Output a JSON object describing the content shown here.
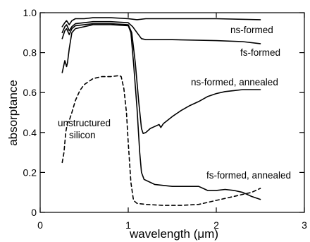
{
  "chart_data": {
    "type": "line",
    "title": "",
    "xlabel": "wavelength (μm)",
    "ylabel": "absorptance",
    "xlim": [
      0,
      3
    ],
    "ylim": [
      0,
      1.0
    ],
    "x_ticks": [
      0,
      1,
      2,
      3
    ],
    "y_ticks": [
      0,
      0.2,
      0.4,
      0.6,
      0.8,
      1.0
    ],
    "x_tick_labels": [
      "0",
      "1",
      "2",
      "3"
    ],
    "y_tick_labels": [
      "0",
      "0.2",
      "0.4",
      "0.6",
      "0.8",
      "1.0"
    ],
    "grid": false,
    "series": [
      {
        "name": "ns-formed",
        "style": "solid",
        "points": [
          [
            0.25,
            0.93
          ],
          [
            0.28,
            0.95
          ],
          [
            0.3,
            0.96
          ],
          [
            0.33,
            0.94
          ],
          [
            0.36,
            0.96
          ],
          [
            0.4,
            0.97
          ],
          [
            0.5,
            0.97
          ],
          [
            0.6,
            0.975
          ],
          [
            0.8,
            0.975
          ],
          [
            1.0,
            0.97
          ],
          [
            1.1,
            0.965
          ],
          [
            1.2,
            0.97
          ],
          [
            1.5,
            0.97
          ],
          [
            2.0,
            0.97
          ],
          [
            2.5,
            0.965
          ]
        ]
      },
      {
        "name": "fs-formed",
        "style": "solid",
        "points": [
          [
            0.25,
            0.9
          ],
          [
            0.28,
            0.93
          ],
          [
            0.3,
            0.94
          ],
          [
            0.33,
            0.91
          ],
          [
            0.36,
            0.93
          ],
          [
            0.4,
            0.945
          ],
          [
            0.6,
            0.955
          ],
          [
            0.8,
            0.955
          ],
          [
            1.0,
            0.95
          ],
          [
            1.05,
            0.93
          ],
          [
            1.1,
            0.9
          ],
          [
            1.15,
            0.87
          ],
          [
            1.2,
            0.865
          ],
          [
            1.5,
            0.865
          ],
          [
            2.0,
            0.86
          ],
          [
            2.3,
            0.855
          ],
          [
            2.5,
            0.845
          ]
        ]
      },
      {
        "name": "ns-formed, annealed",
        "style": "solid",
        "points": [
          [
            0.25,
            0.87
          ],
          [
            0.28,
            0.91
          ],
          [
            0.3,
            0.92
          ],
          [
            0.33,
            0.89
          ],
          [
            0.36,
            0.92
          ],
          [
            0.4,
            0.935
          ],
          [
            0.6,
            0.945
          ],
          [
            0.8,
            0.945
          ],
          [
            1.0,
            0.94
          ],
          [
            1.04,
            0.9
          ],
          [
            1.08,
            0.75
          ],
          [
            1.12,
            0.55
          ],
          [
            1.15,
            0.42
          ],
          [
            1.17,
            0.395
          ],
          [
            1.2,
            0.4
          ],
          [
            1.25,
            0.42
          ],
          [
            1.3,
            0.43
          ],
          [
            1.35,
            0.44
          ],
          [
            1.37,
            0.425
          ],
          [
            1.4,
            0.445
          ],
          [
            1.5,
            0.48
          ],
          [
            1.6,
            0.51
          ],
          [
            1.7,
            0.535
          ],
          [
            1.8,
            0.555
          ],
          [
            1.9,
            0.58
          ],
          [
            2.0,
            0.595
          ],
          [
            2.1,
            0.605
          ],
          [
            2.2,
            0.61
          ],
          [
            2.3,
            0.615
          ],
          [
            2.4,
            0.615
          ],
          [
            2.5,
            0.615
          ]
        ]
      },
      {
        "name": "fs-formed, annealed",
        "style": "solid",
        "points": [
          [
            0.25,
            0.7
          ],
          [
            0.28,
            0.76
          ],
          [
            0.3,
            0.73
          ],
          [
            0.31,
            0.75
          ],
          [
            0.33,
            0.82
          ],
          [
            0.36,
            0.9
          ],
          [
            0.4,
            0.92
          ],
          [
            0.6,
            0.94
          ],
          [
            0.8,
            0.94
          ],
          [
            1.0,
            0.935
          ],
          [
            1.03,
            0.9
          ],
          [
            1.06,
            0.75
          ],
          [
            1.1,
            0.52
          ],
          [
            1.13,
            0.3
          ],
          [
            1.15,
            0.2
          ],
          [
            1.18,
            0.165
          ],
          [
            1.3,
            0.14
          ],
          [
            1.5,
            0.13
          ],
          [
            1.8,
            0.13
          ],
          [
            1.85,
            0.12
          ],
          [
            1.9,
            0.11
          ],
          [
            1.95,
            0.11
          ],
          [
            2.0,
            0.11
          ],
          [
            2.1,
            0.115
          ],
          [
            2.2,
            0.11
          ],
          [
            2.3,
            0.1
          ],
          [
            2.4,
            0.08
          ],
          [
            2.5,
            0.065
          ]
        ]
      },
      {
        "name": "unstructured silicon",
        "style": "dashed",
        "points": [
          [
            0.25,
            0.25
          ],
          [
            0.27,
            0.3
          ],
          [
            0.29,
            0.4
          ],
          [
            0.31,
            0.45
          ],
          [
            0.33,
            0.46
          ],
          [
            0.36,
            0.5
          ],
          [
            0.4,
            0.56
          ],
          [
            0.45,
            0.61
          ],
          [
            0.5,
            0.64
          ],
          [
            0.6,
            0.67
          ],
          [
            0.7,
            0.68
          ],
          [
            0.8,
            0.68
          ],
          [
            0.9,
            0.685
          ],
          [
            0.92,
            0.68
          ],
          [
            0.95,
            0.62
          ],
          [
            0.98,
            0.5
          ],
          [
            1.0,
            0.35
          ],
          [
            1.03,
            0.15
          ],
          [
            1.06,
            0.06
          ],
          [
            1.1,
            0.045
          ],
          [
            1.2,
            0.04
          ],
          [
            1.4,
            0.035
          ],
          [
            1.6,
            0.035
          ],
          [
            1.8,
            0.04
          ],
          [
            1.9,
            0.05
          ],
          [
            2.0,
            0.06
          ],
          [
            2.1,
            0.07
          ],
          [
            2.2,
            0.08
          ],
          [
            2.3,
            0.09
          ],
          [
            2.4,
            0.1
          ],
          [
            2.5,
            0.12
          ]
        ]
      }
    ],
    "annotations": [
      {
        "text": "ns-formed",
        "series": 0
      },
      {
        "text": "fs-formed",
        "series": 1
      },
      {
        "text": "ns-formed, annealed",
        "series": 2
      },
      {
        "text": "unstructured",
        "series": 4
      },
      {
        "text": "silicon",
        "series": 4
      },
      {
        "text": "fs-formed, annealed",
        "series": 3
      }
    ]
  }
}
